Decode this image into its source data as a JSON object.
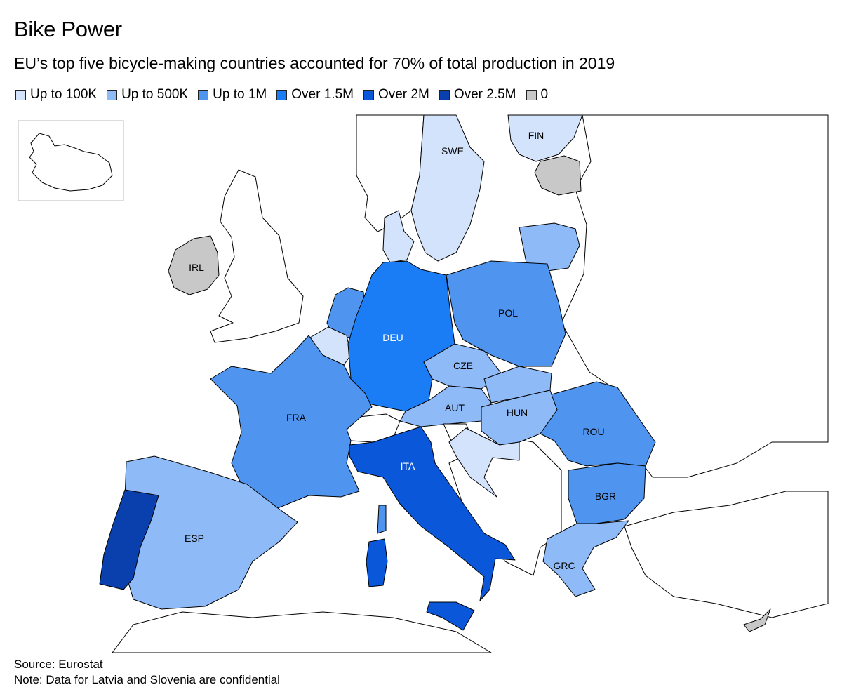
{
  "title": "Bike Power",
  "subtitle": "EU’s top five bicycle-making countries accounted for 70% of total production in 2019",
  "legend": [
    {
      "label": "Up to 100K",
      "color": "#d3e3fb"
    },
    {
      "label": "Up to 500K",
      "color": "#8fbaf8"
    },
    {
      "label": "Up to 1M",
      "color": "#4f95f0"
    },
    {
      "label": "Over 1.5M",
      "color": "#1a7df5"
    },
    {
      "label": "Over 2M",
      "color": "#0b57d9"
    },
    {
      "label": "Over 2.5M",
      "color": "#0a3fae"
    },
    {
      "label": "0",
      "color": "#c8c8c8"
    }
  ],
  "countries": {
    "IRL": {
      "label": "IRL",
      "category": "0"
    },
    "SWE": {
      "label": "SWE",
      "category": "Up to 100K"
    },
    "FIN": {
      "label": "FIN",
      "category": "Up to 100K"
    },
    "DEU": {
      "label": "DEU",
      "category": "Over 1.5M"
    },
    "POL": {
      "label": "POL",
      "category": "Up to 1M"
    },
    "CZE": {
      "label": "CZE",
      "category": "Up to 500K"
    },
    "AUT": {
      "label": "AUT",
      "category": "Up to 500K"
    },
    "HUN": {
      "label": "HUN",
      "category": "Up to 500K"
    },
    "ROU": {
      "label": "ROU",
      "category": "Up to 1M"
    },
    "BGR": {
      "label": "BGR",
      "category": "Up to 1M"
    },
    "FRA": {
      "label": "FRA",
      "category": "Up to 1M"
    },
    "ITA": {
      "label": "ITA",
      "category": "Over 2M"
    },
    "ESP": {
      "label": "ESP",
      "category": "Up to 500K"
    },
    "GRC": {
      "label": "GRC",
      "category": "Up to 500K"
    }
  },
  "source": "Source: Eurostat",
  "note": "Note: Data for Latvia and Slovenia are confidential"
}
